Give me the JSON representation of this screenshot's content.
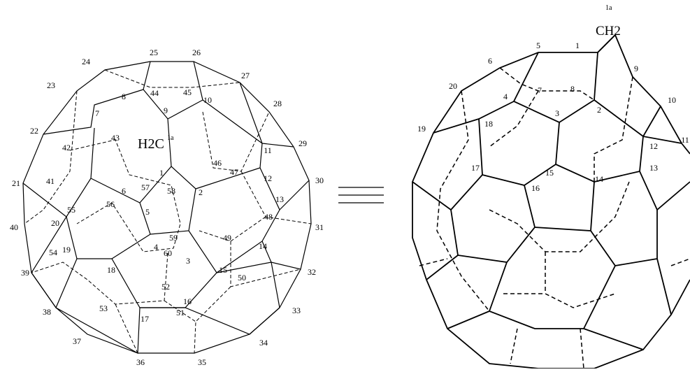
{
  "left": {
    "group": "H2C",
    "group_label": "1a",
    "atoms": [
      "1",
      "2",
      "3",
      "4",
      "5",
      "6",
      "7",
      "8",
      "9",
      "10",
      "11",
      "12",
      "13",
      "14",
      "15",
      "16",
      "17",
      "18",
      "19",
      "20",
      "21",
      "22",
      "23",
      "24",
      "25",
      "26",
      "27",
      "28",
      "29",
      "30",
      "31",
      "32",
      "33",
      "34",
      "35",
      "36",
      "37",
      "38",
      "39",
      "40",
      "41",
      "42",
      "43",
      "44",
      "45",
      "46",
      "47",
      "48",
      "49",
      "50",
      "51",
      "52",
      "53",
      "54",
      "55",
      "56",
      "57",
      "58",
      "59",
      "60"
    ]
  },
  "right": {
    "group": "CH2",
    "group_label": "1a",
    "atoms": [
      "1",
      "2",
      "3",
      "4",
      "5",
      "6",
      "7",
      "8",
      "9",
      "10",
      "11",
      "12",
      "13",
      "14",
      "15",
      "16",
      "17",
      "18",
      "19",
      "20"
    ]
  }
}
